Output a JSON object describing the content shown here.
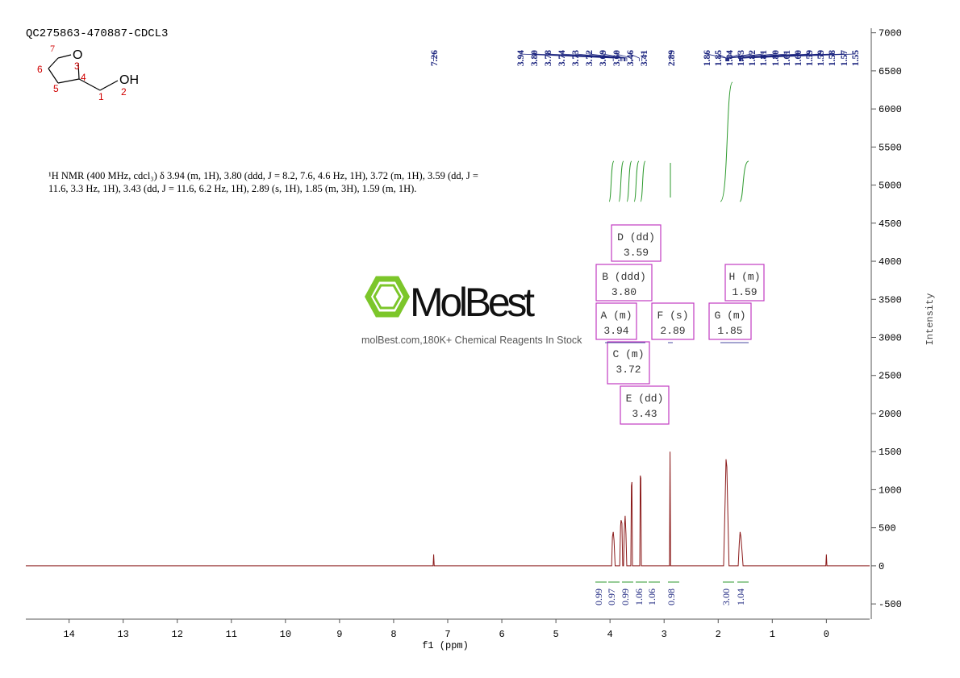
{
  "chart_data": {
    "type": "line",
    "title": "QC275863-470887-CDCL3",
    "x_label": "f1 (ppm)",
    "y_label": "Intensity",
    "xlim": [
      14.8,
      -0.8
    ],
    "ylim": [
      -700,
      7060
    ],
    "xticks": [
      14,
      13,
      12,
      11,
      10,
      9,
      8,
      7,
      6,
      5,
      4,
      3,
      2,
      1,
      0
    ],
    "yticks": [
      -500,
      0,
      500,
      1000,
      1500,
      2000,
      2500,
      3000,
      3500,
      4000,
      4500,
      5000,
      5500,
      6000,
      6500,
      7000
    ],
    "series": [
      {
        "color": "#8b1a1a",
        "x": [
          14.8,
          7.27,
          7.26,
          7.25,
          3.97,
          3.955,
          3.94,
          3.925,
          3.905,
          3.82,
          3.805,
          3.795,
          3.78,
          3.765,
          3.75,
          3.735,
          3.72,
          3.705,
          3.69,
          3.615,
          3.605,
          3.595,
          3.585,
          3.45,
          3.44,
          3.43,
          3.42,
          2.9,
          2.89,
          2.88,
          1.9,
          1.87,
          1.855,
          1.84,
          1.825,
          1.8,
          1.63,
          1.61,
          1.595,
          1.58,
          1.56,
          1.54,
          0.01,
          0,
          -0.01,
          -0.8
        ],
        "values": [
          0,
          0,
          150,
          0,
          0,
          380,
          445,
          330,
          0,
          0,
          520,
          600,
          560,
          0,
          0,
          480,
          657,
          420,
          0,
          0,
          1050,
          1100,
          0,
          0,
          1186,
          1150,
          0,
          0,
          1500,
          0,
          0,
          900,
          1400,
          1300,
          800,
          0,
          0,
          300,
          445,
          380,
          200,
          0,
          0,
          150,
          0,
          0
        ]
      }
    ],
    "peak_labels": [
      "7.26",
      "3.94",
      "3.80",
      "3.78",
      "3.74",
      "3.73",
      "3.72",
      "3.69",
      "3.60",
      "3.46",
      "3.41",
      "2.89",
      "1.86",
      "1.85",
      "1.84",
      "1.83",
      "1.82",
      "1.81",
      "1.80",
      "1.61",
      "1.60",
      "1.59",
      "1.59",
      "1.58",
      "1.57",
      "1.55"
    ],
    "multiplets": [
      {
        "label": "A (m)",
        "shift": "3.94"
      },
      {
        "label": "B (ddd)",
        "shift": "3.80"
      },
      {
        "label": "C (m)",
        "shift": "3.72"
      },
      {
        "label": "D (dd)",
        "shift": "3.59"
      },
      {
        "label": "E (dd)",
        "shift": "3.43"
      },
      {
        "label": "F (s)",
        "shift": "2.89"
      },
      {
        "label": "G (m)",
        "shift": "1.85"
      },
      {
        "label": "H (m)",
        "shift": "1.59"
      }
    ],
    "integrals": [
      "0.99",
      "0.97",
      "0.99",
      "1.06",
      "1.06",
      "0.98",
      "3.00",
      "1.04"
    ],
    "description": "¹H NMR (400 MHz, cdcl₃) δ 3.94 (m, 1H), 3.80 (ddd, J = 8.2, 7.6, 4.6 Hz, 1H), 3.72 (m, 1H), 3.59 (dd, J = 11.6, 3.3 Hz, 1H), 3.43 (dd, J = 11.6, 6.2 Hz, 1H), 2.89 (s, 1H), 1.85 (m, 3H), 1.59 (m, 1H).",
    "structure": {
      "atoms": [
        "7",
        "O",
        "3",
        "6",
        "4",
        "OH",
        "5",
        "1",
        "2"
      ]
    },
    "watermark": {
      "brand": "MolBest",
      "tagline": "molBest.com,180K+ Chemical Reagents In Stock"
    }
  }
}
